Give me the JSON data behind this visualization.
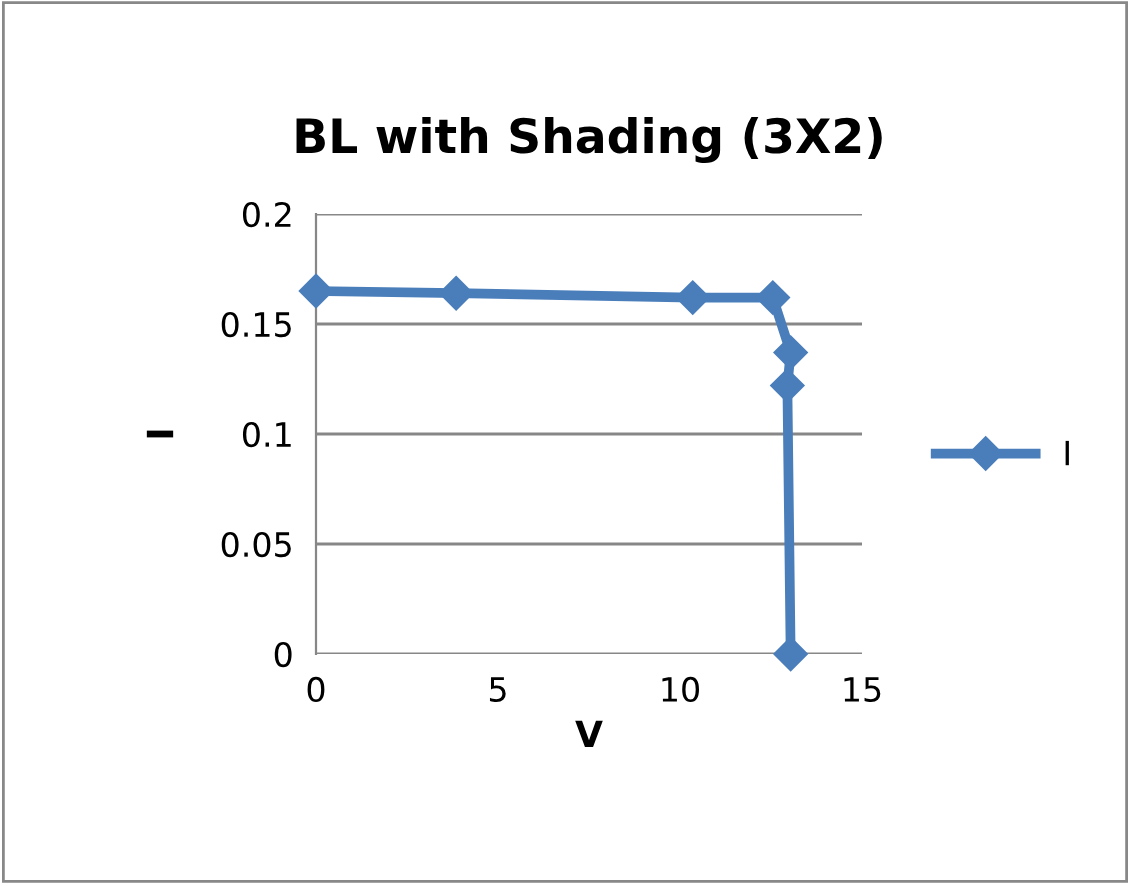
{
  "chart_data": {
    "type": "line",
    "title": "BL with Shading (3X2)",
    "xlabel": "V",
    "ylabel": "I",
    "xlim": [
      0,
      15
    ],
    "xticks": [
      0,
      5,
      10,
      15
    ],
    "ylim": [
      0,
      0.2
    ],
    "yticks": [
      0,
      0.05,
      0.1,
      0.15,
      0.2
    ],
    "grid": "y",
    "legend": "right",
    "marker": "diamond",
    "line_style": "solid",
    "series": [
      {
        "name": "I",
        "color": "#4a7ebb",
        "x": [
          0,
          3.85,
          10.35,
          12.55,
          13.04,
          12.95,
          13.04
        ],
        "values": [
          0.165,
          0.164,
          0.162,
          0.162,
          0.137,
          0.122,
          0
        ]
      }
    ]
  }
}
